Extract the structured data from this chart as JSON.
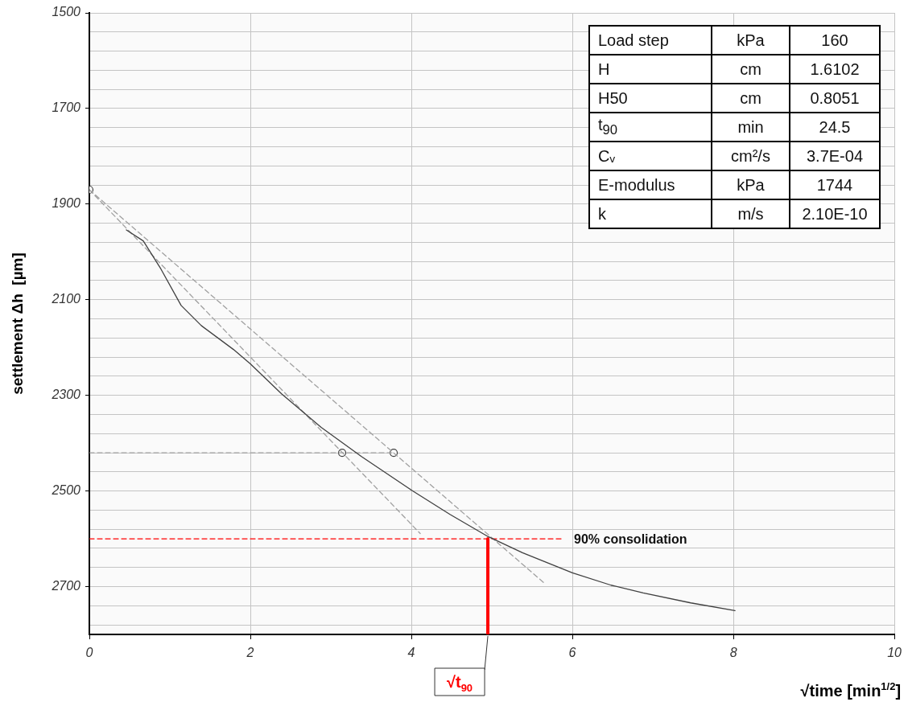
{
  "chart_data": [
    {
      "type": "line",
      "xlabel": "√time [min$^{1/2}$]",
      "ylabel": "settlement Δh  [µm]",
      "xlim": [
        0,
        10
      ],
      "xticks": [
        0,
        2,
        4,
        6,
        8,
        10
      ],
      "ylim": [
        2800,
        1500
      ],
      "yticks": [
        1500,
        {
          "value": 1540,
          "label": null
        },
        {
          "value": 1580,
          "label": null
        },
        {
          "value": 1620,
          "label": null
        },
        {
          "value": 1660,
          "label": null
        },
        1700,
        {
          "value": 1740,
          "label": null
        },
        {
          "value": 1780,
          "label": null
        },
        {
          "value": 1820,
          "label": null
        },
        {
          "value": 1860,
          "label": null
        },
        1900,
        {
          "value": 1940,
          "label": null
        },
        {
          "value": 1980,
          "label": null
        },
        {
          "value": 2020,
          "label": null
        },
        {
          "value": 2060,
          "label": null
        },
        2100,
        {
          "value": 2140,
          "label": null
        },
        {
          "value": 2180,
          "label": null
        },
        {
          "value": 2220,
          "label": null
        },
        {
          "value": 2260,
          "label": null
        },
        2300,
        {
          "value": 2340,
          "label": null
        },
        {
          "value": 2380,
          "label": null
        },
        {
          "value": 2420,
          "label": null
        },
        {
          "value": 2460,
          "label": null
        },
        2500,
        {
          "value": 2540,
          "label": null
        },
        {
          "value": 2580,
          "label": null
        },
        {
          "value": 2620,
          "label": null
        },
        {
          "value": 2660,
          "label": null
        },
        2700,
        {
          "value": 2740,
          "label": null
        },
        {
          "value": 2780,
          "label": null
        }
      ],
      "grid": true,
      "series": [
        {
          "type": "line",
          "color": "#404040",
          "marker": "none",
          "line_style": "solid",
          "x": [
            0.46,
            0.67,
            0.89,
            1.14,
            1.39,
            1.79,
            2.0,
            2.39,
            2.88,
            3.38,
            4.0,
            4.48,
            4.96,
            5.38,
            6.0,
            6.48,
            6.88,
            7.47,
            8.02
          ],
          "values": [
            1954,
            1977,
            2036,
            2112,
            2154,
            2204,
            2234,
            2297,
            2367,
            2428,
            2498,
            2549,
            2596,
            2629,
            2671,
            2697,
            2713,
            2734,
            2750
          ]
        },
        {
          "type": "line",
          "color": "#a0a0a0",
          "marker": "none",
          "line_style": "dashed",
          "x": [
            0,
            5.64
          ],
          "values": [
            1870,
            2691
          ]
        },
        {
          "type": "line",
          "color": "#a0a0a0",
          "marker": "none",
          "line_style": "dashed",
          "x": [
            0,
            4.11
          ],
          "values": [
            1870,
            2589
          ]
        },
        {
          "type": "line",
          "color": "#a0a0a0",
          "marker": "none",
          "line_style": "dashed",
          "x": [
            0,
            3.78
          ],
          "values": [
            2420,
            2420
          ]
        },
        {
          "type": "scatter",
          "color": "#404040",
          "marker": "circle",
          "x": [
            0,
            3.14,
            3.78
          ],
          "values": [
            1870,
            2420,
            2420
          ]
        },
        {
          "type": "line",
          "color": "#ff0000",
          "marker": "none",
          "line_style": "dashed",
          "x": [
            0,
            5.86
          ],
          "values": [
            2600,
            2600
          ]
        },
        {
          "type": "line",
          "color": "#ff0000",
          "marker": "none",
          "line_style": "solid",
          "x": [
            4.95,
            4.95
          ],
          "values": [
            2600,
            2800
          ]
        }
      ],
      "annotations": [
        {
          "text": "90% consolidation",
          "x": 5.86,
          "y": 2600
        },
        {
          "text": "√t$_{90}$",
          "x": 4.95,
          "y": 2800
        }
      ]
    },
    {
      "type": "other",
      "annotations": [
        "Load step",
        "kPa",
        "160",
        "H",
        "cm",
        "1.6102",
        "H50",
        "cm",
        "0.8051",
        "t$_{90}$",
        "min",
        "24.5",
        "Cᵥ",
        "cm²/s",
        "3.7E-04",
        "E-modulus",
        "kPa",
        "1744",
        "k",
        "m/s",
        "2.10E-10"
      ]
    }
  ]
}
